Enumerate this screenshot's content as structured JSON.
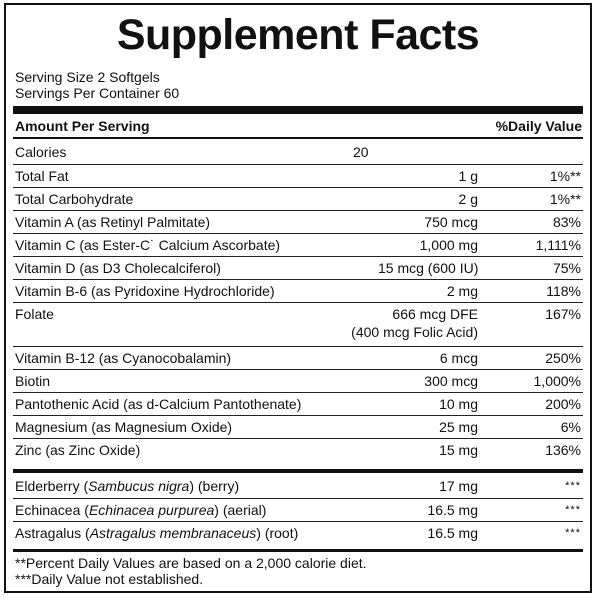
{
  "title": "Supplement Facts",
  "serving_size": "Serving Size 2 Softgels",
  "servings_per_container": "Servings Per Container 60",
  "header": {
    "amount_per_serving": "Amount Per Serving",
    "daily_value": "%Daily Value"
  },
  "rows": [
    {
      "name": "Calories",
      "amount": "20",
      "dv": ""
    },
    {
      "name": "Total Fat",
      "amount": "1 g",
      "dv": "1%**"
    },
    {
      "name": "Total Carbohydrate",
      "amount": "2 g",
      "dv": "1%**"
    },
    {
      "name": "Vitamin A (as Retinyl Palmitate)",
      "amount": "750 mcg",
      "dv": "83%"
    },
    {
      "name": "Vitamin C (as Ester-C˙ Calcium Ascorbate)",
      "amount": "1,000 mg",
      "dv": "1,111%"
    },
    {
      "name": "Vitamin D (as D3 Cholecalciferol)",
      "amount": "15 mcg (600 IU)",
      "dv": "75%"
    },
    {
      "name": "Vitamin B-6 (as Pyridoxine Hydrochloride)",
      "amount": "2 mg",
      "dv": "118%"
    },
    {
      "name": "Folate",
      "amount": "666 mcg DFE",
      "amount_line2": "(400 mcg Folic Acid)",
      "dv": "167%"
    },
    {
      "name": "Vitamin B-12 (as Cyanocobalamin)",
      "amount": "6 mcg",
      "dv": "250%"
    },
    {
      "name": "Biotin",
      "amount": "300 mcg",
      "dv": "1,000%"
    },
    {
      "name": "Pantothenic Acid (as d-Calcium Pantothenate)",
      "amount": "10 mg",
      "dv": "200%"
    },
    {
      "name": "Magnesium (as Magnesium Oxide)",
      "amount": "25 mg",
      "dv": "6%"
    },
    {
      "name": "Zinc (as Zinc Oxide)",
      "amount": "15 mg",
      "dv": "136%"
    }
  ],
  "herbals": [
    {
      "name_plain": "Elderberry",
      "name_italic": "Sambucus nigra",
      "name_suffix": "(berry)",
      "amount": "17 mg",
      "dv": "***"
    },
    {
      "name_plain": "Echinacea",
      "name_italic": "Echinacea purpurea",
      "name_suffix": "(aerial)",
      "amount": "16.5 mg",
      "dv": "***"
    },
    {
      "name_plain": "Astragalus",
      "name_italic": "Astragalus membranaceus",
      "name_suffix": "(root)",
      "amount": "16.5 mg",
      "dv": "***"
    }
  ],
  "footnotes": [
    "**Percent Daily Values are based on a 2,000 calorie diet.",
    "***Daily Value not established."
  ]
}
